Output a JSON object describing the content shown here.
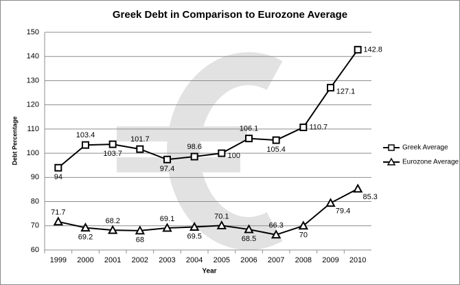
{
  "chart_data": {
    "type": "line",
    "title": "Greek Debt in Comparison to Eurozone Average",
    "x_label": "Year",
    "y_label": "Debt Percentage",
    "categories": [
      "1999",
      "2000",
      "2001",
      "2002",
      "2003",
      "2004",
      "2005",
      "2006",
      "2007",
      "2008",
      "2009",
      "2010"
    ],
    "series": [
      {
        "name": "Greek Average",
        "color": "#000000",
        "marker": "square",
        "values": [
          94,
          103.4,
          103.7,
          101.7,
          97.4,
          98.6,
          100,
          106.1,
          105.4,
          110.7,
          127.1,
          142.8
        ]
      },
      {
        "name": "Eurozone Average",
        "color": "#000000",
        "marker": "triangle",
        "values": [
          71.7,
          69.2,
          68.2,
          68,
          69.1,
          69.5,
          70.1,
          68.5,
          66.3,
          70,
          79.4,
          85.3
        ]
      }
    ],
    "ylim": [
      60,
      150
    ],
    "yticks": [
      60,
      70,
      80,
      90,
      100,
      110,
      120,
      130,
      140,
      150
    ],
    "grid": true,
    "legend": "right"
  }
}
